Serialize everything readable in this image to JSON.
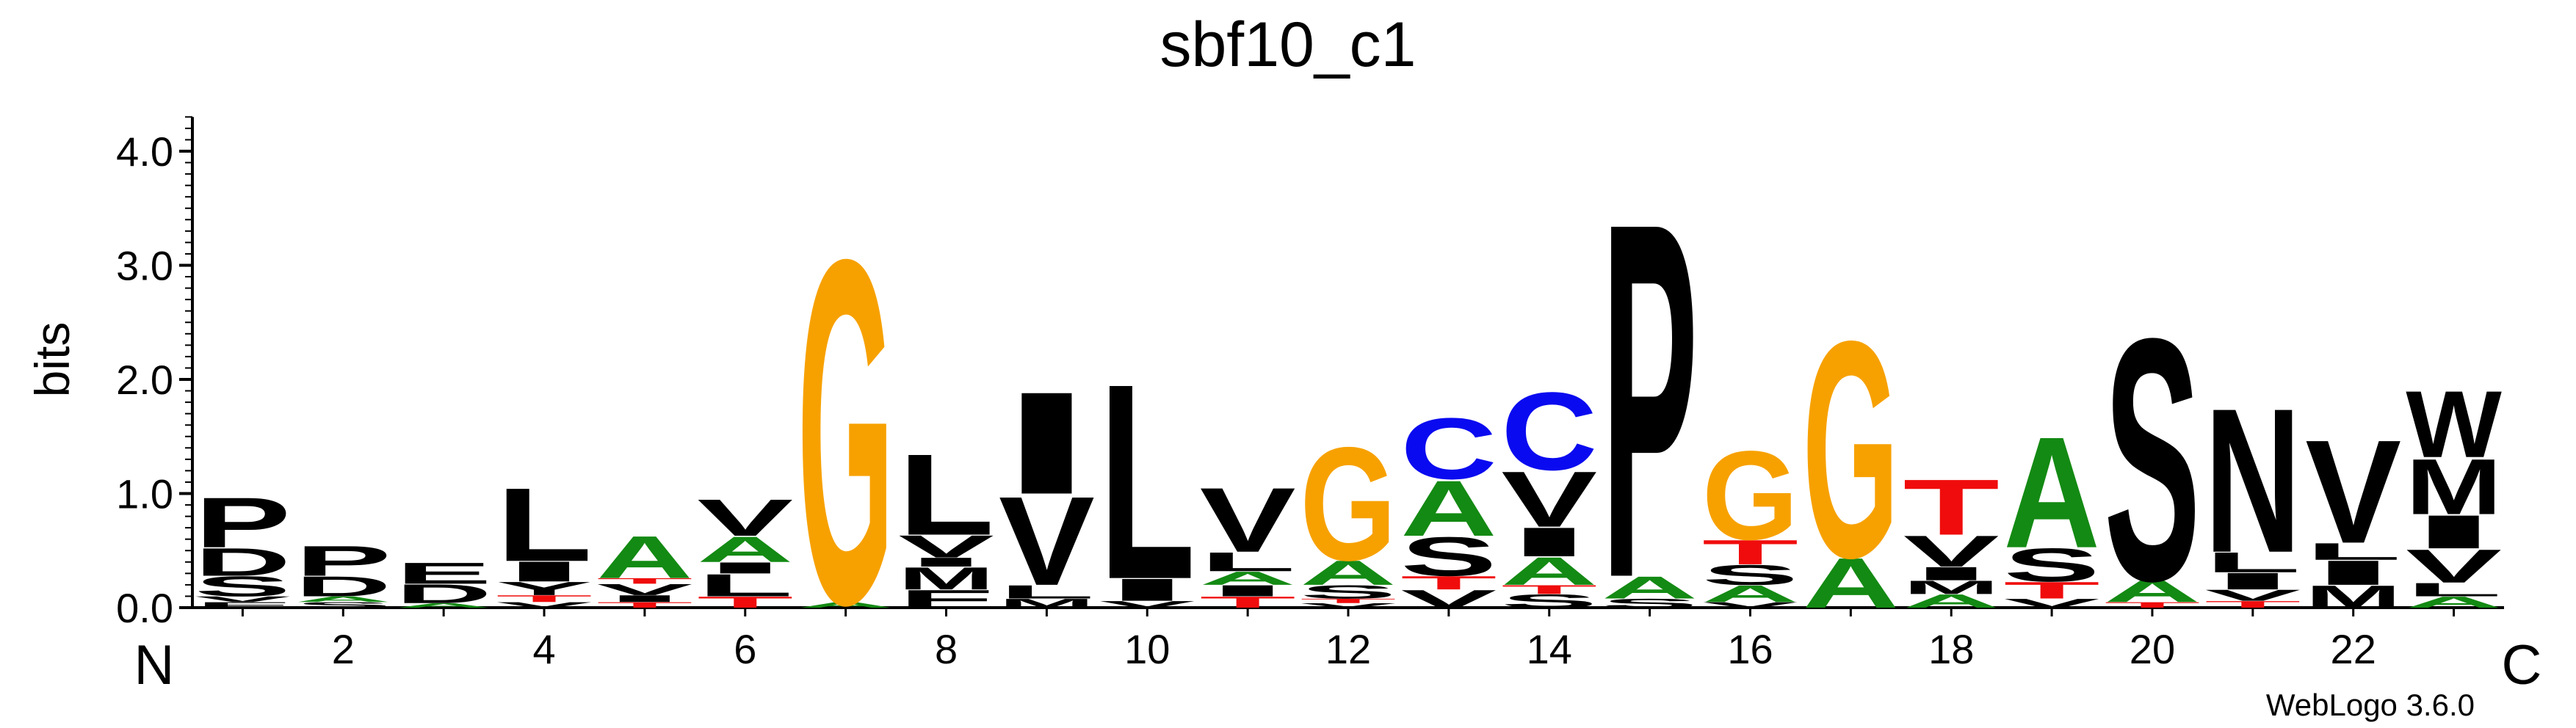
{
  "chart_data": {
    "type": "sequence-logo",
    "title": "sbf10_c1",
    "ylabel": "bits",
    "ylim": [
      0,
      4.3
    ],
    "yticks": [
      "0.0",
      "1.0",
      "2.0",
      "3.0",
      "4.0"
    ],
    "xticks": [
      "2",
      "4",
      "6",
      "8",
      "10",
      "12",
      "14",
      "16",
      "18",
      "20",
      "22"
    ],
    "n_label": "N",
    "c_label": "C",
    "credit": "WebLogo 3.6.0",
    "colors": {
      "G": "#f7a100",
      "C": "#0a0af0",
      "S": "#000000",
      "T": "#f00c0c",
      "A": "#138a13",
      "P": "#000000",
      "L": "#000000",
      "I": "#000000",
      "V": "#000000",
      "M": "#000000",
      "W": "#000000",
      "N": "#000000",
      "F": "#000000",
      "D": "#000000",
      "E": "#000000",
      "Y": "#000000",
      "K": "#000000"
    },
    "positions": [
      {
        "pos": 1,
        "letters": [
          [
            "F",
            0.05
          ],
          [
            "V",
            0.05
          ],
          [
            "S",
            0.18
          ],
          [
            "D",
            0.25
          ],
          [
            "P",
            0.45
          ]
        ]
      },
      {
        "pos": 2,
        "letters": [
          [
            "S",
            0.05
          ],
          [
            "A",
            0.05
          ],
          [
            "D",
            0.18
          ],
          [
            "P",
            0.27
          ]
        ]
      },
      {
        "pos": 3,
        "letters": [
          [
            "A",
            0.04
          ],
          [
            "D",
            0.17
          ],
          [
            "E",
            0.19
          ]
        ]
      },
      {
        "pos": 4,
        "letters": [
          [
            "V",
            0.05
          ],
          [
            "T",
            0.06
          ],
          [
            "Y",
            0.12
          ],
          [
            "I",
            0.18
          ],
          [
            "L",
            0.66
          ]
        ]
      },
      {
        "pos": 5,
        "letters": [
          [
            "T",
            0.05
          ],
          [
            "I",
            0.06
          ],
          [
            "V",
            0.1
          ],
          [
            "T",
            0.05
          ],
          [
            "A",
            0.38
          ]
        ]
      },
      {
        "pos": 6,
        "letters": [
          [
            "T",
            0.1
          ],
          [
            "L",
            0.2
          ],
          [
            "I",
            0.1
          ],
          [
            "A",
            0.23
          ],
          [
            "V",
            0.33
          ]
        ]
      },
      {
        "pos": 7,
        "letters": [
          [
            "A",
            0.05
          ],
          [
            "G",
            3.1
          ]
        ]
      },
      {
        "pos": 8,
        "letters": [
          [
            "F",
            0.16
          ],
          [
            "M",
            0.2
          ],
          [
            "I",
            0.08
          ],
          [
            "V",
            0.2
          ],
          [
            "L",
            0.73
          ]
        ]
      },
      {
        "pos": 9,
        "letters": [
          [
            "M",
            0.08
          ],
          [
            "L",
            0.12
          ],
          [
            "V",
            0.8
          ],
          [
            "I",
            0.92
          ]
        ]
      },
      {
        "pos": 10,
        "letters": [
          [
            "V",
            0.06
          ],
          [
            "I",
            0.2
          ],
          [
            "L",
            1.76
          ]
        ]
      },
      {
        "pos": 11,
        "letters": [
          [
            "T",
            0.1
          ],
          [
            "I",
            0.1
          ],
          [
            "A",
            0.12
          ],
          [
            "L",
            0.17
          ],
          [
            "V",
            0.58
          ]
        ]
      },
      {
        "pos": 12,
        "letters": [
          [
            "V",
            0.04
          ],
          [
            "T",
            0.04
          ],
          [
            "S",
            0.12
          ],
          [
            "A",
            0.22
          ],
          [
            "G",
            1.02
          ]
        ]
      },
      {
        "pos": 13,
        "letters": [
          [
            "V",
            0.16
          ],
          [
            "T",
            0.12
          ],
          [
            "S",
            0.35
          ],
          [
            "A",
            0.5
          ],
          [
            "C",
            0.55
          ]
        ]
      },
      {
        "pos": 14,
        "letters": [
          [
            "S",
            0.12
          ],
          [
            "T",
            0.08
          ],
          [
            "A",
            0.25
          ],
          [
            "I",
            0.26
          ],
          [
            "V",
            0.5
          ],
          [
            "C",
            0.7
          ]
        ]
      },
      {
        "pos": 15,
        "letters": [
          [
            "S",
            0.08
          ],
          [
            "A",
            0.2
          ],
          [
            "P",
            3.2
          ]
        ]
      },
      {
        "pos": 16,
        "letters": [
          [
            "V",
            0.05
          ],
          [
            "A",
            0.15
          ],
          [
            "S",
            0.18
          ],
          [
            "T",
            0.22
          ],
          [
            "G",
            0.8
          ]
        ]
      },
      {
        "pos": 17,
        "letters": [
          [
            "A",
            0.45
          ],
          [
            "G",
            1.95
          ]
        ]
      },
      {
        "pos": 18,
        "letters": [
          [
            "A",
            0.12
          ],
          [
            "M",
            0.12
          ],
          [
            "I",
            0.12
          ],
          [
            "V",
            0.28
          ],
          [
            "T",
            0.5
          ]
        ]
      },
      {
        "pos": 19,
        "letters": [
          [
            "V",
            0.08
          ],
          [
            "T",
            0.15
          ],
          [
            "S",
            0.3
          ],
          [
            "A",
            1.0
          ]
        ]
      },
      {
        "pos": 20,
        "letters": [
          [
            "T",
            0.05
          ],
          [
            "A",
            0.2
          ],
          [
            "S",
            2.18
          ]
        ]
      },
      {
        "pos": 21,
        "letters": [
          [
            "T",
            0.06
          ],
          [
            "V",
            0.1
          ],
          [
            "I",
            0.15
          ],
          [
            "L",
            0.18
          ],
          [
            "N",
            1.3
          ]
        ]
      },
      {
        "pos": 22,
        "letters": [
          [
            "M",
            0.2
          ],
          [
            "I",
            0.22
          ],
          [
            "L",
            0.15
          ],
          [
            "V",
            0.93
          ]
        ]
      },
      {
        "pos": 23,
        "letters": [
          [
            "A",
            0.1
          ],
          [
            "L",
            0.12
          ],
          [
            "V",
            0.3
          ],
          [
            "I",
            0.3
          ],
          [
            "M",
            0.5
          ],
          [
            "W",
            0.6
          ]
        ]
      }
    ]
  }
}
